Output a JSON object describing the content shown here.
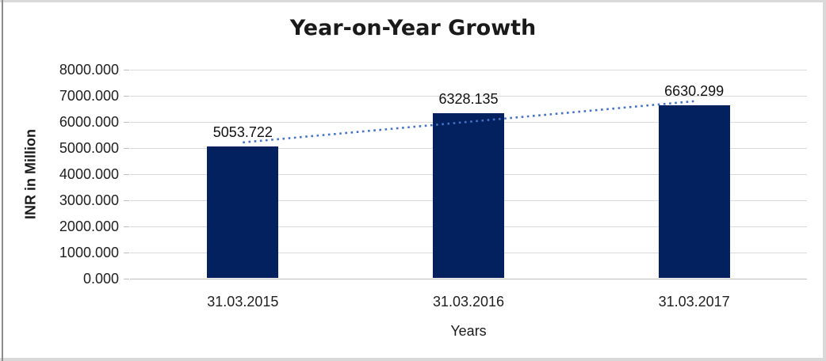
{
  "chart_data": {
    "type": "bar",
    "title": "Year-on-Year Growth",
    "categories": [
      "31.03.2015",
      "31.03.2016",
      "31.03.2017"
    ],
    "values": [
      5053.722,
      6328.135,
      6630.299
    ],
    "data_labels": [
      "5053.722",
      "6328.135",
      "6630.299"
    ],
    "xlabel": "Years",
    "ylabel": "INR in Million",
    "ylim": [
      0,
      8000
    ],
    "ytick_step": 1000,
    "ytick_labels": [
      "0.000",
      "1000.000",
      "2000.000",
      "3000.000",
      "4000.000",
      "5000.000",
      "6000.000",
      "7000.000",
      "8000.000"
    ],
    "grid": true,
    "legend": false,
    "trendline": {
      "type": "linear",
      "style": "dotted"
    }
  },
  "colors": {
    "bar": "#03205f",
    "trendline": "#4472c4",
    "gridline": "#d9d9d9",
    "axis_line": "#bfbfbf",
    "tick_mark": "#bfbfbf",
    "frame_border": "#d9d9d9",
    "frame_left_border": "#8c8c8c",
    "title_text": "#1a1a1a",
    "label_text": "#1f1f1f",
    "background": "#ffffff"
  }
}
